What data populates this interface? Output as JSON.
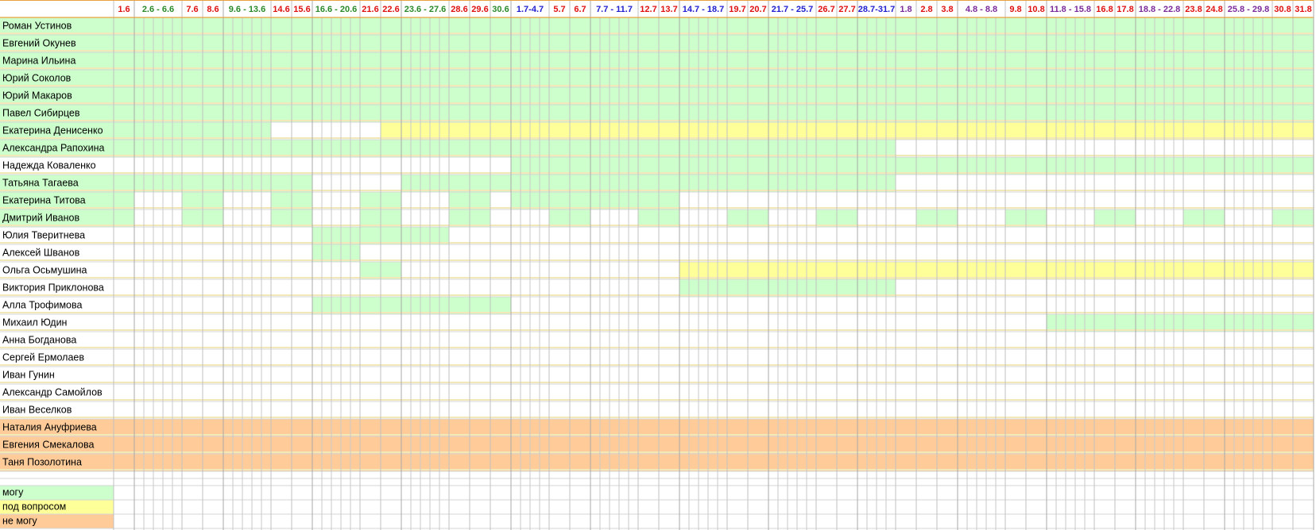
{
  "headers": [
    {
      "label": "1.6",
      "color": "#e01010"
    },
    {
      "label": "2.6 - 6.6",
      "color": "#2a8a2a"
    },
    {
      "label": "7.6",
      "color": "#e01010"
    },
    {
      "label": "8.6",
      "color": "#e01010"
    },
    {
      "label": "9.6 - 13.6",
      "color": "#2a8a2a"
    },
    {
      "label": "14.6",
      "color": "#e01010"
    },
    {
      "label": "15.6",
      "color": "#e01010"
    },
    {
      "label": "16.6 - 20.6",
      "color": "#2a8a2a"
    },
    {
      "label": "21.6",
      "color": "#e01010"
    },
    {
      "label": "22.6",
      "color": "#e01010"
    },
    {
      "label": "23.6 - 27.6",
      "color": "#2a8a2a"
    },
    {
      "label": "28.6",
      "color": "#e01010"
    },
    {
      "label": "29.6",
      "color": "#e01010"
    },
    {
      "label": "30.6",
      "color": "#2a8a2a"
    },
    {
      "label": "1.7-4.7",
      "color": "#2020d0"
    },
    {
      "label": "5.7",
      "color": "#e01010"
    },
    {
      "label": "6.7",
      "color": "#e01010"
    },
    {
      "label": "7.7 - 11.7",
      "color": "#2020d0"
    },
    {
      "label": "12.7",
      "color": "#e01010"
    },
    {
      "label": "13.7",
      "color": "#e01010"
    },
    {
      "label": "14.7 - 18.7",
      "color": "#2020d0"
    },
    {
      "label": "19.7",
      "color": "#e01010"
    },
    {
      "label": "20.7",
      "color": "#e01010"
    },
    {
      "label": "21.7 - 25.7",
      "color": "#2020d0"
    },
    {
      "label": "26.7",
      "color": "#e01010"
    },
    {
      "label": "27.7",
      "color": "#e01010"
    },
    {
      "label": "28.7-31.7",
      "color": "#2020d0"
    },
    {
      "label": "1.8",
      "color": "#7a2a9a"
    },
    {
      "label": "2.8",
      "color": "#e01010"
    },
    {
      "label": "3.8",
      "color": "#e01010"
    },
    {
      "label": "4.8 - 8.8",
      "color": "#7a2a9a"
    },
    {
      "label": "9.8",
      "color": "#e01010"
    },
    {
      "label": "10.8",
      "color": "#e01010"
    },
    {
      "label": "11.8 - 15.8",
      "color": "#7a2a9a"
    },
    {
      "label": "16.8",
      "color": "#e01010"
    },
    {
      "label": "17.8",
      "color": "#e01010"
    },
    {
      "label": "18.8 - 22.8",
      "color": "#7a2a9a"
    },
    {
      "label": "23.8",
      "color": "#e01010"
    },
    {
      "label": "24.8",
      "color": "#e01010"
    },
    {
      "label": "25.8 - 29.8",
      "color": "#7a2a9a"
    },
    {
      "label": "30.8",
      "color": "#e01010"
    },
    {
      "label": "31.8",
      "color": "#e01010"
    }
  ],
  "legend": [
    {
      "label": "могу",
      "color": "#ccffcc"
    },
    {
      "label": "под вопросом",
      "color": "#ffff99"
    },
    {
      "label": "не могу",
      "color": "#ffcc99"
    }
  ],
  "rows": [
    {
      "name": "Роман Устинов",
      "cells": [
        0,
        0,
        0,
        0,
        0,
        0,
        0,
        0,
        0,
        0,
        0,
        0,
        0,
        0,
        0,
        0,
        0,
        0,
        0,
        0,
        0,
        0,
        0,
        0,
        0,
        0,
        0,
        0,
        0,
        0,
        0,
        0,
        0,
        0,
        0,
        0,
        0,
        0,
        0,
        0,
        0,
        0
      ]
    },
    {
      "name": "Евгений Окунев",
      "cells": [
        0,
        0,
        0,
        0,
        0,
        0,
        0,
        0,
        0,
        0,
        0,
        0,
        0,
        0,
        0,
        0,
        0,
        0,
        0,
        0,
        0,
        0,
        0,
        0,
        0,
        0,
        0,
        0,
        0,
        0,
        0,
        0,
        0,
        0,
        0,
        0,
        0,
        0,
        0,
        0,
        0,
        0
      ]
    },
    {
      "name": "Марина Ильина",
      "cells": [
        0,
        0,
        0,
        0,
        0,
        0,
        0,
        0,
        0,
        0,
        0,
        0,
        0,
        0,
        0,
        0,
        0,
        0,
        0,
        0,
        0,
        0,
        0,
        0,
        0,
        0,
        0,
        0,
        0,
        0,
        0,
        0,
        0,
        0,
        0,
        0,
        0,
        0,
        0,
        0,
        0,
        0
      ]
    },
    {
      "name": "Юрий Соколов",
      "cells": [
        0,
        0,
        0,
        0,
        0,
        0,
        0,
        0,
        0,
        0,
        0,
        0,
        0,
        0,
        0,
        0,
        0,
        0,
        0,
        0,
        0,
        0,
        0,
        0,
        0,
        0,
        0,
        0,
        0,
        0,
        0,
        0,
        0,
        0,
        0,
        0,
        0,
        0,
        0,
        0,
        0,
        0
      ]
    },
    {
      "name": "Юрий Макаров",
      "cells": [
        0,
        0,
        0,
        0,
        0,
        0,
        0,
        0,
        0,
        0,
        0,
        0,
        0,
        0,
        0,
        0,
        0,
        0,
        0,
        0,
        0,
        0,
        0,
        0,
        0,
        0,
        0,
        0,
        0,
        0,
        0,
        0,
        0,
        0,
        0,
        0,
        0,
        0,
        0,
        0,
        0,
        0
      ]
    },
    {
      "name": "Павел Сибирцев",
      "cells": [
        0,
        0,
        0,
        0,
        0,
        0,
        0,
        0,
        0,
        0,
        0,
        0,
        0,
        0,
        0,
        0,
        0,
        0,
        0,
        0,
        0,
        0,
        0,
        0,
        0,
        0,
        0,
        0,
        0,
        0,
        0,
        0,
        0,
        0,
        0,
        0,
        0,
        0,
        0,
        0,
        0,
        0
      ]
    },
    {
      "name": "Екатерина Денисенко",
      "cells": [
        0,
        0,
        0,
        0,
        0,
        null,
        null,
        null,
        null,
        1,
        1,
        1,
        1,
        1,
        1,
        1,
        1,
        1,
        1,
        1,
        1,
        1,
        1,
        1,
        1,
        1,
        1,
        1,
        1,
        1,
        1,
        1,
        1,
        1,
        1,
        1,
        1,
        1,
        1,
        1,
        1,
        1
      ]
    },
    {
      "name": "Александра Рапохина",
      "cells": [
        0,
        0,
        0,
        0,
        0,
        0,
        0,
        0,
        0,
        0,
        0,
        0,
        0,
        0,
        0,
        0,
        0,
        0,
        0,
        0,
        0,
        0,
        0,
        0,
        0,
        0,
        0,
        null,
        null,
        null,
        null,
        null,
        null,
        null,
        null,
        null,
        null,
        null,
        null,
        null,
        null,
        null
      ]
    },
    {
      "name": "Надежда Коваленко",
      "cells": [
        null,
        null,
        null,
        null,
        null,
        null,
        null,
        null,
        null,
        null,
        null,
        null,
        null,
        null,
        0,
        0,
        0,
        0,
        0,
        0,
        0,
        0,
        0,
        0,
        0,
        0,
        0,
        0,
        0,
        0,
        0,
        0,
        0,
        0,
        0,
        0,
        0,
        0,
        0,
        0,
        0,
        0
      ]
    },
    {
      "name": "Татьяна Тагаева",
      "cells": [
        0,
        0,
        0,
        0,
        0,
        0,
        0,
        null,
        null,
        null,
        0,
        0,
        0,
        0,
        0,
        0,
        0,
        0,
        0,
        0,
        0,
        0,
        0,
        0,
        0,
        0,
        0,
        null,
        null,
        null,
        null,
        null,
        null,
        null,
        null,
        null,
        null,
        null,
        null,
        null,
        null,
        null
      ]
    },
    {
      "name": "Екатерина Титова",
      "cells": [
        0,
        null,
        0,
        0,
        null,
        0,
        0,
        null,
        0,
        0,
        null,
        0,
        0,
        null,
        0,
        0,
        0,
        0,
        0,
        0,
        null,
        null,
        null,
        null,
        null,
        null,
        null,
        null,
        null,
        null,
        null,
        null,
        null,
        null,
        null,
        null,
        null,
        null,
        null,
        null,
        null,
        null
      ]
    },
    {
      "name": "Дмитрий Иванов",
      "cells": [
        0,
        null,
        0,
        0,
        null,
        0,
        0,
        null,
        0,
        0,
        null,
        0,
        0,
        null,
        null,
        0,
        0,
        null,
        0,
        0,
        null,
        0,
        0,
        null,
        0,
        0,
        null,
        null,
        0,
        0,
        null,
        0,
        0,
        null,
        0,
        0,
        null,
        0,
        0,
        null,
        0,
        0
      ]
    },
    {
      "name": "Юлия Тверитнева",
      "cells": [
        null,
        null,
        null,
        null,
        null,
        null,
        null,
        0,
        0,
        0,
        0,
        null,
        null,
        null,
        null,
        null,
        null,
        null,
        null,
        null,
        null,
        null,
        null,
        null,
        null,
        null,
        null,
        null,
        null,
        null,
        null,
        null,
        null,
        null,
        null,
        null,
        null,
        null,
        null,
        null,
        null,
        null
      ]
    },
    {
      "name": "Алексей Шванов",
      "cells": [
        null,
        null,
        null,
        null,
        null,
        null,
        null,
        0,
        null,
        null,
        null,
        null,
        null,
        null,
        null,
        null,
        null,
        null,
        null,
        null,
        null,
        null,
        null,
        null,
        null,
        null,
        null,
        null,
        null,
        null,
        null,
        null,
        null,
        null,
        null,
        null,
        null,
        null,
        null,
        null,
        null,
        null
      ]
    },
    {
      "name": "Ольга Осьмушина",
      "cells": [
        null,
        null,
        null,
        null,
        null,
        null,
        null,
        null,
        0,
        0,
        null,
        null,
        null,
        null,
        null,
        null,
        null,
        null,
        null,
        null,
        1,
        1,
        1,
        1,
        1,
        1,
        1,
        1,
        1,
        1,
        1,
        1,
        1,
        1,
        1,
        1,
        1,
        1,
        1,
        1,
        1,
        1
      ]
    },
    {
      "name": "Виктория Приклонова",
      "cells": [
        null,
        null,
        null,
        null,
        null,
        null,
        null,
        null,
        null,
        null,
        null,
        null,
        null,
        null,
        null,
        null,
        null,
        null,
        null,
        null,
        0,
        0,
        0,
        0,
        0,
        0,
        0,
        null,
        null,
        null,
        null,
        null,
        null,
        null,
        null,
        null,
        null,
        null,
        null,
        null,
        null,
        null
      ]
    },
    {
      "name": "Алла Трофимова",
      "cells": [
        null,
        null,
        null,
        null,
        null,
        null,
        null,
        0,
        0,
        0,
        0,
        0,
        0,
        0,
        null,
        null,
        null,
        null,
        null,
        null,
        null,
        null,
        null,
        null,
        null,
        null,
        null,
        null,
        null,
        null,
        null,
        null,
        null,
        null,
        null,
        null,
        null,
        null,
        null,
        null,
        null,
        null
      ]
    },
    {
      "name": "Михаил Юдин",
      "cells": [
        null,
        null,
        null,
        null,
        null,
        null,
        null,
        null,
        null,
        null,
        null,
        null,
        null,
        null,
        null,
        null,
        null,
        null,
        null,
        null,
        null,
        null,
        null,
        null,
        null,
        null,
        null,
        null,
        null,
        null,
        null,
        null,
        null,
        0,
        0,
        0,
        0,
        0,
        0,
        0,
        0,
        0
      ]
    },
    {
      "name": "Анна Богданова",
      "cells": [
        null,
        null,
        null,
        null,
        null,
        null,
        null,
        null,
        null,
        null,
        null,
        null,
        null,
        null,
        null,
        null,
        null,
        null,
        null,
        null,
        null,
        null,
        null,
        null,
        null,
        null,
        null,
        null,
        null,
        null,
        null,
        null,
        null,
        null,
        null,
        null,
        null,
        null,
        null,
        null,
        null,
        null
      ]
    },
    {
      "name": "Сергей Ермолаев",
      "cells": [
        null,
        null,
        null,
        null,
        null,
        null,
        null,
        null,
        null,
        null,
        null,
        null,
        null,
        null,
        null,
        null,
        null,
        null,
        null,
        null,
        null,
        null,
        null,
        null,
        null,
        null,
        null,
        null,
        null,
        null,
        null,
        null,
        null,
        null,
        null,
        null,
        null,
        null,
        null,
        null,
        null,
        null
      ]
    },
    {
      "name": "Иван Гунин",
      "cells": [
        null,
        null,
        null,
        null,
        null,
        null,
        null,
        null,
        null,
        null,
        null,
        null,
        null,
        null,
        null,
        null,
        null,
        null,
        null,
        null,
        null,
        null,
        null,
        null,
        null,
        null,
        null,
        null,
        null,
        null,
        null,
        null,
        null,
        null,
        null,
        null,
        null,
        null,
        null,
        null,
        null,
        null
      ]
    },
    {
      "name": "Александр Самойлов",
      "cells": [
        null,
        null,
        null,
        null,
        null,
        null,
        null,
        null,
        null,
        null,
        null,
        null,
        null,
        null,
        null,
        null,
        null,
        null,
        null,
        null,
        null,
        null,
        null,
        null,
        null,
        null,
        null,
        null,
        null,
        null,
        null,
        null,
        null,
        null,
        null,
        null,
        null,
        null,
        null,
        null,
        null,
        null
      ]
    },
    {
      "name": "Иван Веселков",
      "cells": [
        null,
        null,
        null,
        null,
        null,
        null,
        null,
        null,
        null,
        null,
        null,
        null,
        null,
        null,
        null,
        null,
        null,
        null,
        null,
        null,
        null,
        null,
        null,
        null,
        null,
        null,
        null,
        null,
        null,
        null,
        null,
        null,
        null,
        null,
        null,
        null,
        null,
        null,
        null,
        null,
        null,
        null
      ]
    },
    {
      "name": "Наталия Ануфриева",
      "cells": [
        2,
        2,
        2,
        2,
        2,
        2,
        2,
        2,
        2,
        2,
        2,
        2,
        2,
        2,
        2,
        2,
        2,
        2,
        2,
        2,
        2,
        2,
        2,
        2,
        2,
        2,
        2,
        2,
        2,
        2,
        2,
        2,
        2,
        2,
        2,
        2,
        2,
        2,
        2,
        2,
        2,
        2
      ]
    },
    {
      "name": "Евгения Смекалова",
      "cells": [
        2,
        2,
        2,
        2,
        2,
        2,
        2,
        2,
        2,
        2,
        2,
        2,
        2,
        2,
        2,
        2,
        2,
        2,
        2,
        2,
        2,
        2,
        2,
        2,
        2,
        2,
        2,
        2,
        2,
        2,
        2,
        2,
        2,
        2,
        2,
        2,
        2,
        2,
        2,
        2,
        2,
        2
      ]
    },
    {
      "name": "Таня Позолотина",
      "cells": [
        2,
        2,
        2,
        2,
        2,
        2,
        2,
        2,
        2,
        2,
        2,
        2,
        2,
        2,
        2,
        2,
        2,
        2,
        2,
        2,
        2,
        2,
        2,
        2,
        2,
        2,
        2,
        2,
        2,
        2,
        2,
        2,
        2,
        2,
        2,
        2,
        2,
        2,
        2,
        2,
        2,
        2
      ]
    }
  ]
}
